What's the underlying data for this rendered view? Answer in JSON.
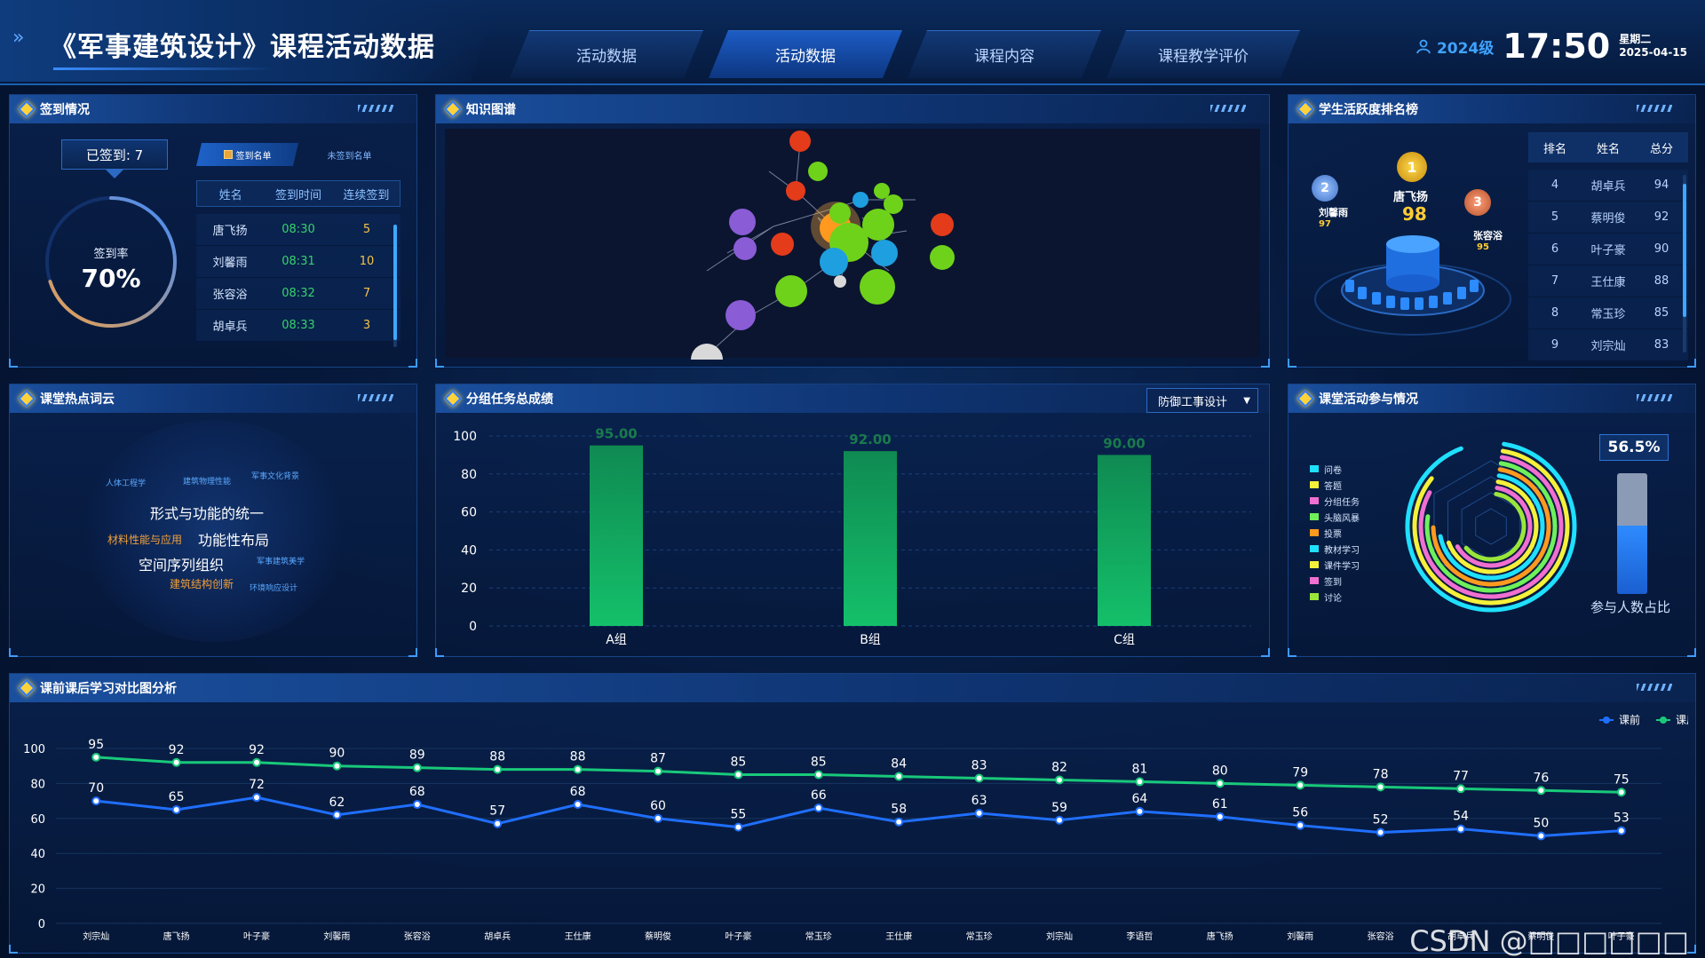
{
  "header": {
    "title": "《军事建筑设计》课程活动数据",
    "tabs": [
      {
        "label": "活动数据",
        "active": false
      },
      {
        "label": "活动数据",
        "active": true
      },
      {
        "label": "课程内容",
        "active": false
      },
      {
        "label": "课程教学评价",
        "active": false
      }
    ],
    "grade": "2024级",
    "time": "17:50",
    "weekday": "星期二",
    "date": "2025-04-15"
  },
  "signin": {
    "title": "签到情况",
    "signed_label": "已签到: 7",
    "rate_label": "签到率",
    "rate_value": "70%",
    "rate_fraction": 0.7,
    "tab_signed": "签到名单",
    "tab_unsigned": "未签到名单",
    "columns": [
      "姓名",
      "签到时间",
      "连续签到"
    ],
    "rows": [
      {
        "name": "唐飞扬",
        "time": "08:30",
        "streak": "5"
      },
      {
        "name": "刘馨雨",
        "time": "08:31",
        "streak": "10"
      },
      {
        "name": "张容浴",
        "time": "08:32",
        "streak": "7"
      },
      {
        "name": "胡卓兵",
        "time": "08:33",
        "streak": "3"
      }
    ]
  },
  "graph": {
    "title": "知识图谱"
  },
  "ranking": {
    "title": "学生活跃度排名榜",
    "podium": [
      {
        "rank": "1",
        "name": "唐飞扬",
        "score": "98"
      },
      {
        "rank": "2",
        "name": "刘馨雨",
        "score": "97"
      },
      {
        "rank": "3",
        "name": "张容浴",
        "score": "95"
      }
    ],
    "columns": [
      "排名",
      "姓名",
      "总分"
    ],
    "rows": [
      {
        "rank": "4",
        "name": "胡卓兵",
        "score": "94"
      },
      {
        "rank": "5",
        "name": "蔡明俊",
        "score": "92"
      },
      {
        "rank": "6",
        "name": "叶子豪",
        "score": "90"
      },
      {
        "rank": "7",
        "name": "王仕康",
        "score": "88"
      },
      {
        "rank": "8",
        "name": "常玉珍",
        "score": "85"
      },
      {
        "rank": "9",
        "name": "刘宗灿",
        "score": "83"
      }
    ]
  },
  "wordcloud": {
    "title": "课堂热点词云",
    "words": [
      {
        "text": "人体工程学",
        "color": "#5aa9ff",
        "size": 9
      },
      {
        "text": "建筑物理性能",
        "color": "#5aa9ff",
        "size": 9
      },
      {
        "text": "军事文化背景",
        "color": "#5aa9ff",
        "size": 9
      },
      {
        "text": "形式与功能的统一",
        "color": "#ffffff",
        "size": 16
      },
      {
        "text": "材料性能与应用",
        "color": "#f2a13a",
        "size": 12
      },
      {
        "text": "功能性布局",
        "color": "#ffffff",
        "size": 16
      },
      {
        "text": "空间序列组织",
        "color": "#ffffff",
        "size": 16
      },
      {
        "text": "军事建筑美学",
        "color": "#5aa9ff",
        "size": 9
      },
      {
        "text": "建筑结构创新",
        "color": "#f2a13a",
        "size": 12
      },
      {
        "text": "环境响应设计",
        "color": "#5aa9ff",
        "size": 9
      }
    ]
  },
  "group": {
    "title": "分组任务总成绩",
    "dropdown": "防御工事设计",
    "chart_data": {
      "type": "bar",
      "categories": [
        "A组",
        "B组",
        "C组"
      ],
      "values": [
        95.0,
        92.0,
        90.0
      ],
      "data_labels": [
        "95.00",
        "92.00",
        "90.00"
      ],
      "ylim": [
        0,
        100
      ],
      "yticks": [
        "0",
        "20",
        "40",
        "60",
        "80",
        "100"
      ],
      "color": "#14c06a"
    }
  },
  "participation": {
    "title": "课堂活动参与情况",
    "legend": [
      {
        "label": "问卷",
        "color": "#1fe0ff"
      },
      {
        "label": "答题",
        "color": "#f5f03a"
      },
      {
        "label": "分组任务",
        "color": "#f06fd0"
      },
      {
        "label": "头脑风暴",
        "color": "#6ef05a"
      },
      {
        "label": "投票",
        "color": "#ff9a1f"
      },
      {
        "label": "教材学习",
        "color": "#1fe0ff"
      },
      {
        "label": "课件学习",
        "color": "#f5f03a"
      },
      {
        "label": "签到",
        "color": "#f06fd0"
      },
      {
        "label": "讨论",
        "color": "#9be63a"
      }
    ],
    "percent": "56.5%",
    "percent_fraction": 0.565,
    "percent_label": "参与人数占比"
  },
  "compare": {
    "title": "课前课后学习对比图分析",
    "chart_data": {
      "type": "line",
      "categories": [
        "刘宗灿",
        "唐飞扬",
        "叶子豪",
        "刘馨雨",
        "张容浴",
        "胡卓兵",
        "王仕康",
        "蔡明俊",
        "叶子豪",
        "常玉珍",
        "王仕康",
        "常玉珍",
        "刘宗灿",
        "李语哲",
        "唐飞扬",
        "刘馨雨",
        "张容浴",
        "胡卓兵",
        "蔡明俊",
        "叶子豪"
      ],
      "series": [
        {
          "name": "课前",
          "color": "#1f6fff",
          "values": [
            70,
            65,
            72,
            62,
            68,
            57,
            68,
            60,
            55,
            66,
            58,
            63,
            59,
            64,
            61,
            56,
            52,
            54,
            50,
            53
          ]
        },
        {
          "name": "课后",
          "color": "#18c97a",
          "values": [
            95,
            92,
            92,
            90,
            89,
            88,
            88,
            87,
            85,
            85,
            84,
            83,
            82,
            81,
            80,
            79,
            78,
            77,
            76,
            75
          ]
        }
      ],
      "ylim": [
        0,
        100
      ],
      "yticks": [
        "0",
        "20",
        "40",
        "60",
        "80",
        "100"
      ],
      "legend_position": "top-right"
    }
  },
  "watermark": "CSDN @□□□□□□"
}
